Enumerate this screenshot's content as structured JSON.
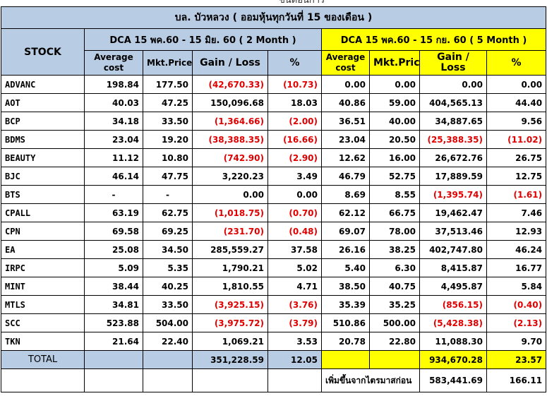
{
  "top_partial_text": "ขั้นตอนการ",
  "title": "บล. บัวหลวง  ( ออมหุ้นทุกวันที่ 15 ของเดือน )",
  "period1": {
    "label": "DCA 15 พค.60 - 15 มิย. 60 ( 2 Month )"
  },
  "period2": {
    "label": "DCA 15 พค.60 - 15 กย. 60 ( 5 Month )"
  },
  "stock_header": "STOCK",
  "col_headers": {
    "avg": "Average cost",
    "mkt": "Mkt.Price",
    "gain": "Gain / Loss",
    "pct": "%"
  },
  "colors": {
    "blue_header": "#b8cce4",
    "yellow_header": "#ffff00",
    "negative": "#e00000"
  },
  "rows": [
    {
      "stock": "ADVANC",
      "p1": {
        "avg": "198.84",
        "mkt": "177.50",
        "gain": "(42,670.33)",
        "pct": "(10.73)"
      },
      "p2": {
        "avg": "0.00",
        "mkt": "0.00",
        "gain": "0.00",
        "pct": "0.00"
      }
    },
    {
      "stock": "AOT",
      "p1": {
        "avg": "40.03",
        "mkt": "47.25",
        "gain": "150,096.68",
        "pct": "18.03"
      },
      "p2": {
        "avg": "40.86",
        "mkt": "59.00",
        "gain": "404,565.13",
        "pct": "44.40"
      }
    },
    {
      "stock": "BCP",
      "p1": {
        "avg": "34.18",
        "mkt": "33.50",
        "gain": "(1,364.66)",
        "pct": "(2.00)"
      },
      "p2": {
        "avg": "36.51",
        "mkt": "40.00",
        "gain": "34,887.65",
        "pct": "9.56"
      }
    },
    {
      "stock": "BDMS",
      "p1": {
        "avg": "23.04",
        "mkt": "19.20",
        "gain": "(38,388.35)",
        "pct": "(16.66)"
      },
      "p2": {
        "avg": "23.04",
        "mkt": "20.50",
        "gain": "(25,388.35)",
        "pct": "(11.02)"
      }
    },
    {
      "stock": "BEAUTY",
      "p1": {
        "avg": "11.12",
        "mkt": "10.80",
        "gain": "(742.90)",
        "pct": "(2.90)"
      },
      "p2": {
        "avg": "12.62",
        "mkt": "16.00",
        "gain": "26,672.76",
        "pct": "26.75"
      }
    },
    {
      "stock": "BJC",
      "p1": {
        "avg": "46.14",
        "mkt": "47.75",
        "gain": "3,220.23",
        "pct": "3.49"
      },
      "p2": {
        "avg": "46.79",
        "mkt": "52.75",
        "gain": "17,889.59",
        "pct": "12.75"
      }
    },
    {
      "stock": "BTS",
      "p1": {
        "avg": "-",
        "mkt": "-",
        "gain": "0.00",
        "pct": "0.00"
      },
      "p2": {
        "avg": "8.69",
        "mkt": "8.55",
        "gain": "(1,395.74)",
        "pct": "(1.61)"
      }
    },
    {
      "stock": "CPALL",
      "p1": {
        "avg": "63.19",
        "mkt": "62.75",
        "gain": "(1,018.75)",
        "pct": "(0.70)"
      },
      "p2": {
        "avg": "62.12",
        "mkt": "66.75",
        "gain": "19,462.47",
        "pct": "7.46"
      }
    },
    {
      "stock": "CPN",
      "p1": {
        "avg": "69.58",
        "mkt": "69.25",
        "gain": "(231.70)",
        "pct": "(0.48)"
      },
      "p2": {
        "avg": "69.07",
        "mkt": "78.00",
        "gain": "37,513.46",
        "pct": "12.93"
      }
    },
    {
      "stock": "EA",
      "p1": {
        "avg": "25.08",
        "mkt": "34.50",
        "gain": "285,559.27",
        "pct": "37.58"
      },
      "p2": {
        "avg": "26.16",
        "mkt": "38.25",
        "gain": "402,747.80",
        "pct": "46.24"
      }
    },
    {
      "stock": "IRPC",
      "p1": {
        "avg": "5.09",
        "mkt": "5.35",
        "gain": "1,790.21",
        "pct": "5.02"
      },
      "p2": {
        "avg": "5.40",
        "mkt": "6.30",
        "gain": "8,415.87",
        "pct": "16.77"
      }
    },
    {
      "stock": "MINT",
      "p1": {
        "avg": "38.44",
        "mkt": "40.25",
        "gain": "1,810.55",
        "pct": "4.71"
      },
      "p2": {
        "avg": "38.50",
        "mkt": "40.75",
        "gain": "4,495.87",
        "pct": "5.84"
      }
    },
    {
      "stock": "MTLS",
      "p1": {
        "avg": "34.81",
        "mkt": "33.50",
        "gain": "(3,925.15)",
        "pct": "(3.76)"
      },
      "p2": {
        "avg": "35.39",
        "mkt": "35.25",
        "gain": "(856.15)",
        "pct": "(0.40)"
      }
    },
    {
      "stock": "SCC",
      "p1": {
        "avg": "523.88",
        "mkt": "504.00",
        "gain": "(3,975.72)",
        "pct": "(3.79)"
      },
      "p2": {
        "avg": "510.86",
        "mkt": "500.00",
        "gain": "(5,428.38)",
        "pct": "(2.13)"
      }
    },
    {
      "stock": "TKN",
      "p1": {
        "avg": "21.64",
        "mkt": "22.40",
        "gain": "1,069.21",
        "pct": "3.53"
      },
      "p2": {
        "avg": "20.78",
        "mkt": "22.80",
        "gain": "11,088.30",
        "pct": "9.70"
      }
    }
  ],
  "total": {
    "label": "TOTAL",
    "p1": {
      "gain": "351,228.59",
      "pct": "12.05"
    },
    "p2": {
      "gain": "934,670.28",
      "pct": "23.57"
    }
  },
  "extra": {
    "label": "เพิ่มขึ้นจากไตรมาสก่อน",
    "gain": "583,441.69",
    "pct": "166.11"
  }
}
